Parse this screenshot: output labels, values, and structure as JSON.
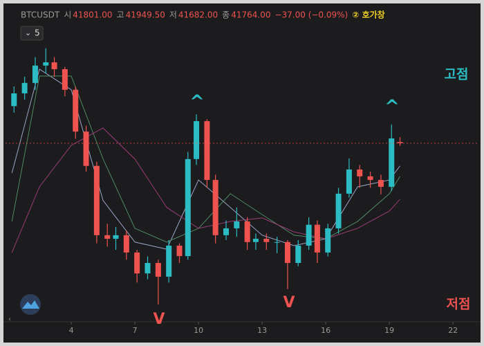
{
  "chart_data": {
    "type": "candlestick",
    "title": "BTCUSDT",
    "header": {
      "interval": "5",
      "open_label": "시",
      "open": "41801.00",
      "high_label": "고",
      "high": "41949.50",
      "low_label": "저",
      "low": "41682.00",
      "close_label": "종",
      "close": "41764.00",
      "change": "−37.00 (−0.09%)",
      "orderbook": "② 호가창"
    },
    "x": [
      1.3,
      1.8,
      2.3,
      2.8,
      3.2,
      3.7,
      4.2,
      4.7,
      5.2,
      5.7,
      6.1,
      6.6,
      7.1,
      7.6,
      8.1,
      8.6,
      9.1,
      9.5,
      9.9,
      10.4,
      10.8,
      11.3,
      11.8,
      12.3,
      12.7,
      13.2,
      13.7,
      14.2,
      14.7,
      15.2,
      15.6,
      16.1,
      16.6,
      17.1,
      17.6,
      18.1,
      18.6,
      19.1,
      19.5
    ],
    "open": [
      42900,
      43290,
      43610,
      44140,
      44240,
      44030,
      43400,
      42120,
      41070,
      38950,
      38840,
      38950,
      38420,
      37780,
      38100,
      37680,
      38630,
      38310,
      41280,
      42440,
      40640,
      38950,
      39160,
      39370,
      38740,
      38840,
      38740,
      38740,
      38100,
      38630,
      39270,
      38420,
      39160,
      40220,
      40960,
      40750,
      40640,
      40430,
      41801
    ],
    "high": [
      43500,
      43800,
      44400,
      44670,
      44400,
      44100,
      43500,
      42300,
      41200,
      39300,
      39200,
      39100,
      38500,
      38300,
      38200,
      38800,
      38700,
      41500,
      42650,
      42500,
      40800,
      39400,
      39800,
      39500,
      39000,
      39000,
      38900,
      38800,
      38800,
      39500,
      39400,
      39300,
      40400,
      41300,
      41100,
      40900,
      40800,
      42340,
      41949.5
    ],
    "low": [
      42700,
      43100,
      43400,
      43900,
      43800,
      43200,
      41900,
      40900,
      38700,
      38600,
      38500,
      38200,
      37500,
      37600,
      36830,
      37500,
      38100,
      38200,
      41100,
      40400,
      38700,
      38800,
      38900,
      38500,
      38500,
      38500,
      38400,
      37300,
      38000,
      38500,
      38100,
      38300,
      39000,
      40100,
      40400,
      40400,
      40200,
      40300,
      41682
    ],
    "close": [
      43290,
      43610,
      44140,
      44240,
      44030,
      43400,
      42120,
      41070,
      38950,
      38840,
      38950,
      38420,
      37780,
      38100,
      37680,
      38630,
      38310,
      41280,
      42440,
      40640,
      38950,
      39160,
      39370,
      38740,
      38840,
      38740,
      38740,
      38100,
      38630,
      39270,
      38420,
      39160,
      40220,
      40960,
      40750,
      40640,
      40430,
      41910,
      41764
    ],
    "up_color": "#2bbcc4",
    "down_color": "#ef5350",
    "ma_x": [
      1.2,
      2.5,
      4,
      5.5,
      7,
      8.5,
      10,
      11.5,
      13,
      14.5,
      16,
      17.5,
      19,
      19.5
    ],
    "ma": [
      {
        "color": "#9aa6c8",
        "values": [
          40850,
          44030,
          43400,
          40010,
          38740,
          38520,
          40640,
          39800,
          38950,
          38630,
          38840,
          40430,
          40640,
          41070
        ]
      },
      {
        "color": "#4f8a62",
        "values": [
          39370,
          43820,
          43820,
          41280,
          39160,
          38740,
          39160,
          40220,
          39580,
          38950,
          38840,
          39370,
          40220,
          40750
        ]
      },
      {
        "color": "#9a3c78",
        "values": [
          38420,
          40430,
          41700,
          42230,
          41280,
          39800,
          39160,
          39370,
          39480,
          39050,
          38840,
          39160,
          39690,
          40050
        ]
      }
    ],
    "xlim": [
      0.9,
      23.2
    ],
    "xticks": [
      4,
      7,
      10,
      13,
      16,
      19,
      22
    ],
    "ylim": [
      36300,
      45300
    ],
    "annotations": [
      "^",
      "^",
      "V",
      "V",
      "고점",
      "저점"
    ]
  }
}
